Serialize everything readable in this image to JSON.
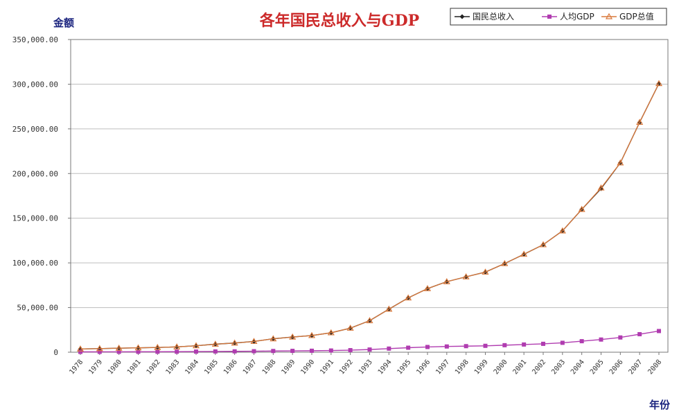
{
  "chart_data": {
    "type": "line",
    "title": "各年国民总收入与GDP",
    "ylabel": "金额",
    "xlabel": "年份",
    "ylim": [
      0,
      350000
    ],
    "yticks": [
      "0",
      "50,000.00",
      "100,000.00",
      "150,000.00",
      "200,000.00",
      "250,000.00",
      "300,000.00",
      "350,000.00"
    ],
    "grid": true,
    "legend_position": "top-right",
    "x": [
      "1978",
      "1979",
      "1980",
      "1981",
      "1982",
      "1983",
      "1984",
      "1985",
      "1986",
      "1987",
      "1988",
      "1989",
      "1990",
      "1991",
      "1992",
      "1993",
      "1994",
      "1995",
      "1996",
      "1997",
      "1998",
      "1999",
      "2000",
      "2001",
      "2002",
      "2003",
      "2004",
      "2005",
      "2006",
      "2007",
      "2008"
    ],
    "series": [
      {
        "name": "国民总收入",
        "color": "#222222",
        "marker": "diamond",
        "values": [
          3645,
          4063,
          4546,
          4892,
          5323,
          5963,
          7208,
          9016,
          10275,
          12059,
          15043,
          16992,
          18668,
          21781,
          26923,
          35334,
          48198,
          60794,
          71177,
          78973,
          84402,
          89677,
          99215,
          109655,
          120333,
          135823,
          159878,
          183085,
          211924,
          257306,
          300670
        ]
      },
      {
        "name": "人均GDP",
        "color": "#b03cb0",
        "marker": "square",
        "values": [
          381,
          419,
          463,
          492,
          528,
          583,
          695,
          858,
          963,
          1112,
          1366,
          1519,
          1644,
          1893,
          2311,
          2998,
          4044,
          5046,
          5846,
          6420,
          6796,
          7159,
          7858,
          8622,
          9398,
          10542,
          12336,
          14185,
          16500,
          20169,
          23708
        ]
      },
      {
        "name": "GDP总值",
        "color": "#d9783a",
        "marker": "triangle",
        "values": [
          3645,
          4063,
          4546,
          4892,
          5323,
          5963,
          7208,
          9016,
          10275,
          12059,
          15043,
          16992,
          18668,
          21781,
          26923,
          35334,
          48198,
          60794,
          71177,
          78973,
          84402,
          89677,
          99215,
          109655,
          120333,
          135823,
          159878,
          183868,
          211924,
          257306,
          300670
        ]
      }
    ]
  }
}
